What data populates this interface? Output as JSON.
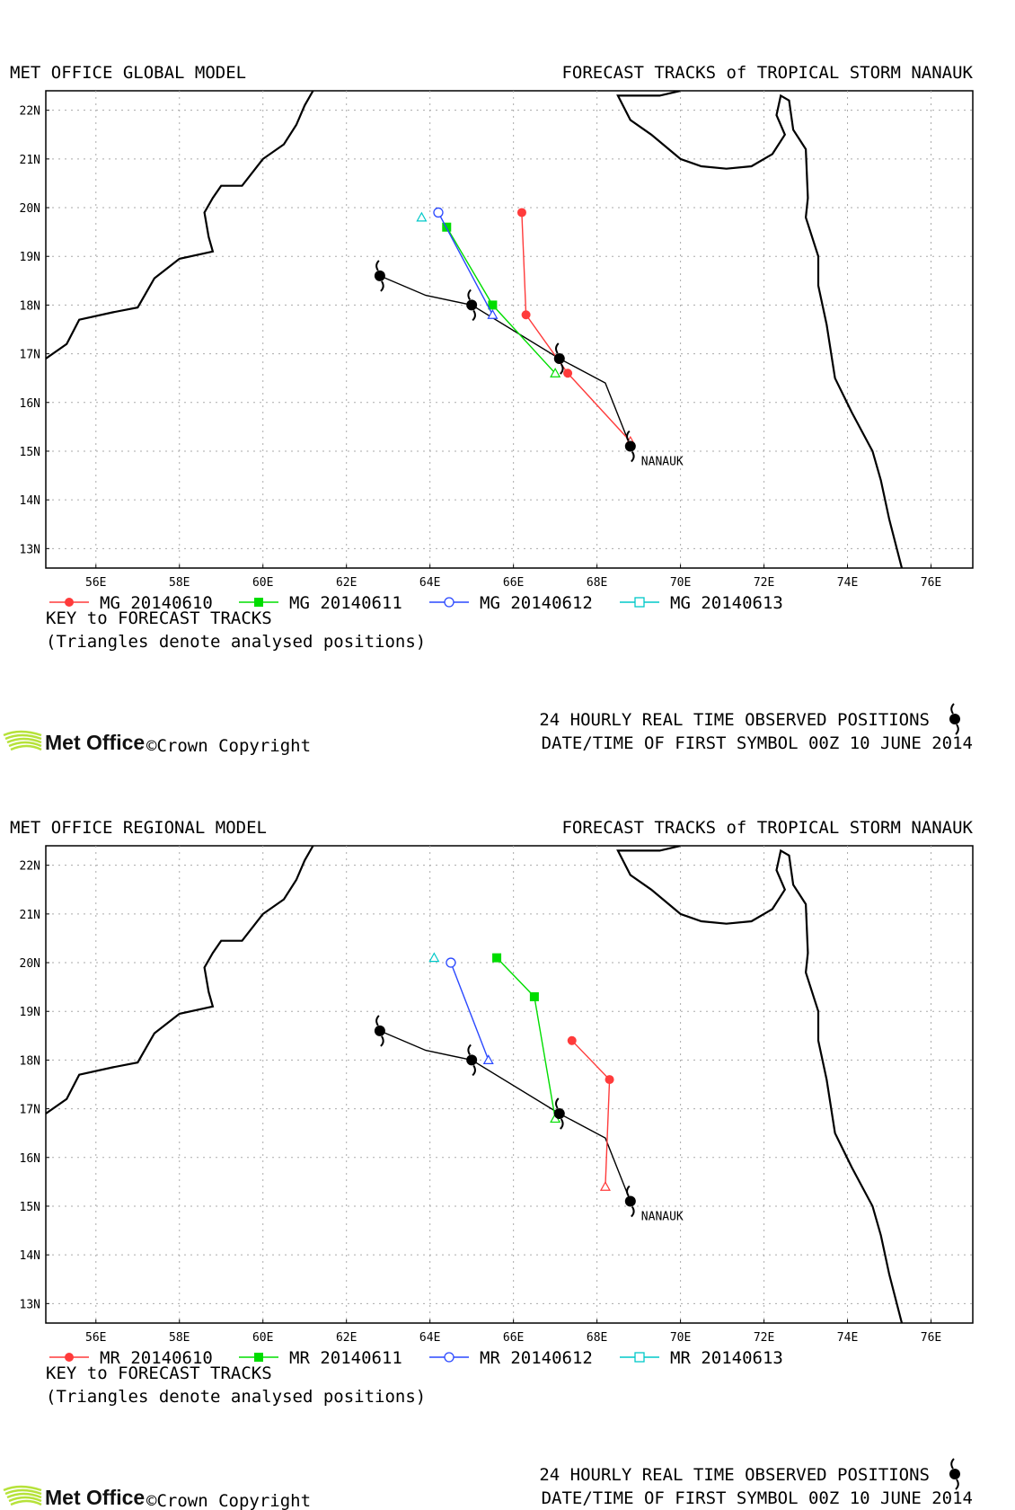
{
  "panels": [
    {
      "model_title": "MET OFFICE GLOBAL MODEL",
      "forecast_title": "FORECAST TRACKS of TROPICAL STORM NANAUK",
      "storm_label": "NANAUK",
      "key_title": "KEY to FORECAST TRACKS",
      "key_note": "(Triangles denote analysed positions)",
      "observed_line1": "24 HOURLY REAL TIME OBSERVED POSITIONS",
      "observed_line2": "DATE/TIME OF FIRST SYMBOL 00Z 10 JUNE 2014",
      "brand": "Met Office",
      "copyright": "©Crown Copyright",
      "legend": [
        {
          "label": "MG 20140610",
          "color": "#ff3b3b",
          "marker": "filled-circle"
        },
        {
          "label": "MG 20140611",
          "color": "#00dd00",
          "marker": "filled-square"
        },
        {
          "label": "MG 20140612",
          "color": "#2a48ff",
          "marker": "open-circle"
        },
        {
          "label": "MG 20140613",
          "color": "#00c8c8",
          "marker": "open-square"
        }
      ],
      "tracks": [
        {
          "color": "#ff3b3b",
          "analysed": [
            68.8,
            15.2
          ],
          "points": [
            [
              68.8,
              15.2
            ],
            [
              67.3,
              16.6
            ],
            [
              66.3,
              17.8
            ],
            [
              66.2,
              19.9
            ]
          ]
        },
        {
          "color": "#00dd00",
          "analysed": [
            67.0,
            16.6
          ],
          "points": [
            [
              67.0,
              16.6
            ],
            [
              65.5,
              18.0
            ],
            [
              64.4,
              19.6
            ]
          ]
        },
        {
          "color": "#2a48ff",
          "analysed": [
            65.5,
            17.8
          ],
          "points": [
            [
              65.5,
              17.8
            ],
            [
              64.2,
              19.9
            ]
          ]
        },
        {
          "color": "#00c8c8",
          "analysed": [
            63.8,
            19.8
          ],
          "points": []
        }
      ]
    },
    {
      "model_title": "MET OFFICE REGIONAL MODEL",
      "forecast_title": "FORECAST TRACKS of TROPICAL STORM NANAUK",
      "storm_label": "NANAUK",
      "key_title": "KEY to FORECAST TRACKS",
      "key_note": "(Triangles denote analysed positions)",
      "observed_line1": "24 HOURLY REAL TIME OBSERVED POSITIONS",
      "observed_line2": "DATE/TIME OF FIRST SYMBOL 00Z 10 JUNE 2014",
      "brand": "Met Office",
      "copyright": "©Crown Copyright",
      "legend": [
        {
          "label": "MR 20140610",
          "color": "#ff3b3b",
          "marker": "filled-circle"
        },
        {
          "label": "MR 20140611",
          "color": "#00dd00",
          "marker": "filled-square"
        },
        {
          "label": "MR 20140612",
          "color": "#2a48ff",
          "marker": "open-circle"
        },
        {
          "label": "MR 20140613",
          "color": "#00c8c8",
          "marker": "open-square"
        }
      ],
      "tracks": [
        {
          "color": "#ff3b3b",
          "analysed": [
            68.2,
            15.4
          ],
          "points": [
            [
              68.2,
              15.4
            ],
            [
              68.3,
              17.6
            ],
            [
              67.4,
              18.4
            ]
          ]
        },
        {
          "color": "#00dd00",
          "analysed": [
            67.0,
            16.8
          ],
          "points": [
            [
              67.0,
              16.8
            ],
            [
              66.5,
              19.3
            ],
            [
              65.6,
              20.1
            ]
          ]
        },
        {
          "color": "#2a48ff",
          "analysed": [
            65.4,
            18.0
          ],
          "points": [
            [
              65.4,
              18.0
            ],
            [
              64.5,
              20.0
            ]
          ]
        },
        {
          "color": "#00c8c8",
          "analysed": [
            64.1,
            20.1
          ],
          "points": []
        }
      ]
    }
  ],
  "chart_data": {
    "type": "map",
    "x_ticks": [
      "56E",
      "58E",
      "60E",
      "62E",
      "64E",
      "66E",
      "68E",
      "70E",
      "72E",
      "74E",
      "76E"
    ],
    "y_ticks": [
      "22N",
      "21N",
      "20N",
      "19N",
      "18N",
      "17N",
      "16N",
      "15N",
      "14N",
      "13N"
    ],
    "lon_range": [
      54.8,
      77.0
    ],
    "lat_range": [
      12.6,
      22.4
    ],
    "observed_positions": [
      [
        68.8,
        15.1
      ],
      [
        67.1,
        16.9
      ],
      [
        65.0,
        18.0
      ],
      [
        62.8,
        18.6
      ]
    ],
    "observed_track": [
      [
        68.8,
        15.1
      ],
      [
        68.2,
        16.4
      ],
      [
        67.1,
        16.9
      ],
      [
        65.0,
        18.0
      ],
      [
        63.9,
        18.2
      ],
      [
        62.8,
        18.6
      ]
    ],
    "grid": true
  }
}
